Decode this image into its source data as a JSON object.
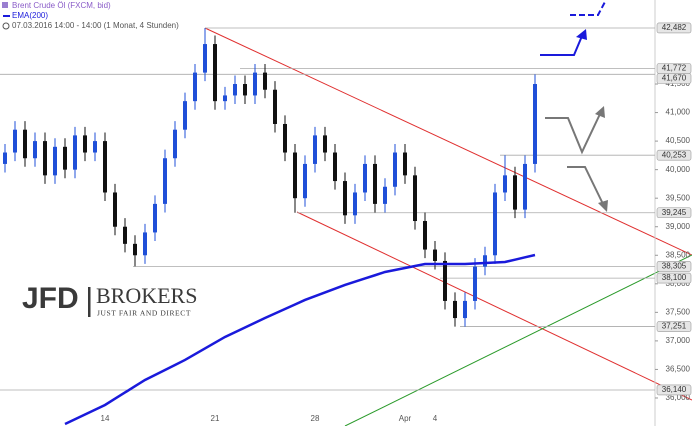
{
  "chart_data": {
    "type": "candlestick",
    "title": "Brent Crude Öl (FXCM, bid)",
    "subtitle": "07.03.2016 14:00 - 14:00 (1 Monat, 4 Stunden)",
    "categories": [
      null,
      null,
      null,
      null,
      null,
      null,
      null,
      null,
      null,
      null,
      "14",
      null,
      null,
      null,
      null,
      null,
      null,
      null,
      null,
      null,
      null,
      "21",
      null,
      null,
      null,
      null,
      null,
      null,
      null,
      null,
      null,
      "28",
      null,
      null,
      null,
      null,
      null,
      null,
      null,
      null,
      "Apr",
      null,
      null,
      "4",
      null,
      null,
      null,
      null,
      null,
      null,
      null,
      null,
      null,
      null
    ],
    "open": [
      40100,
      40300,
      40700,
      40200,
      40500,
      39900,
      40400,
      40000,
      40600,
      40300,
      40500,
      39600,
      39000,
      38700,
      38500,
      38900,
      39400,
      40200,
      40700,
      41200,
      41700,
      42200,
      41200,
      41300,
      41500,
      41300,
      41700,
      41400,
      40800,
      40300,
      39500,
      40100,
      40600,
      40300,
      39800,
      39200,
      39600,
      40100,
      39400,
      39700,
      40300,
      39900,
      39100,
      38600,
      38400,
      37700,
      37400,
      37700,
      38300,
      38500,
      39600,
      39900,
      39300,
      40100
    ],
    "high": [
      40450,
      40850,
      40850,
      40650,
      40650,
      40550,
      40550,
      40750,
      40750,
      40650,
      40650,
      39750,
      39150,
      38850,
      39050,
      39550,
      40350,
      40850,
      41350,
      41850,
      42482,
      42350,
      41450,
      41650,
      41650,
      41850,
      41850,
      41550,
      40950,
      40450,
      40250,
      40750,
      40750,
      40450,
      39950,
      39750,
      40250,
      40250,
      39850,
      40450,
      40450,
      40050,
      39250,
      38750,
      38550,
      37850,
      37850,
      38450,
      38650,
      39750,
      40253,
      40050,
      40250,
      41670
    ],
    "low": [
      39950,
      40150,
      40050,
      40050,
      39750,
      39750,
      39850,
      39850,
      40150,
      40150,
      39450,
      38850,
      38550,
      38305,
      38350,
      38750,
      39250,
      40050,
      40550,
      41050,
      41550,
      41050,
      41050,
      41150,
      41150,
      41150,
      41250,
      40650,
      40150,
      39245,
      39350,
      39950,
      40150,
      39650,
      39050,
      39050,
      39450,
      39250,
      39250,
      39550,
      39750,
      38950,
      38450,
      38250,
      37550,
      37251,
      37250,
      37550,
      38150,
      38350,
      39450,
      39150,
      39150,
      39950
    ],
    "close": [
      40300,
      40700,
      40200,
      40500,
      39900,
      40400,
      40000,
      40600,
      40300,
      40500,
      39600,
      39000,
      38700,
      38500,
      38900,
      39400,
      40200,
      40700,
      41200,
      41700,
      42200,
      41200,
      41300,
      41500,
      41300,
      41700,
      41400,
      40800,
      40300,
      39500,
      40100,
      40600,
      40300,
      39800,
      39200,
      39600,
      40100,
      39400,
      39700,
      40300,
      39900,
      39100,
      38600,
      38400,
      37700,
      37400,
      37700,
      38300,
      38500,
      39600,
      39900,
      39300,
      40100,
      41500
    ],
    "up_color": "#1f4fd8",
    "down_color": "#111111",
    "series": [
      {
        "name": "EMA(200)",
        "color": "#1a1adb",
        "values": [
          null,
          null,
          null,
          null,
          null,
          null,
          35544,
          35627,
          35710,
          35793,
          35877,
          35987,
          36096,
          36206,
          36315,
          36403,
          36491,
          36578,
          36666,
          36767,
          36868,
          36968,
          37069,
          37152,
          37235,
          37318,
          37401,
          37480,
          37559,
          37638,
          37717,
          37783,
          37849,
          37914,
          37980,
          38037,
          38094,
          38150,
          38207,
          38242,
          38277,
          38312,
          38347,
          38347,
          38347,
          38347,
          38347,
          38356,
          38365,
          38373,
          38382,
          38423,
          38464,
          38505
        ]
      }
    ],
    "ylim": [
      35509,
      42972
    ],
    "yticks": [
      {
        "value": 41500,
        "label": "41,500"
      },
      {
        "value": 41000,
        "label": "41,000"
      },
      {
        "value": 40500,
        "label": "40,500"
      },
      {
        "value": 40000,
        "label": "40,000"
      },
      {
        "value": 39500,
        "label": "39,500"
      },
      {
        "value": 39000,
        "label": "39,000"
      },
      {
        "value": 38500,
        "label": "38,500"
      },
      {
        "value": 38000,
        "label": "38,000"
      },
      {
        "value": 37500,
        "label": "37,500"
      },
      {
        "value": 37000,
        "label": "37,000"
      },
      {
        "value": 36500,
        "label": "36,500"
      },
      {
        "value": 36000,
        "label": "36,000"
      }
    ],
    "levels": [
      {
        "value": 42482,
        "label": "42,482"
      },
      {
        "value": 41772,
        "label": "41,772"
      },
      {
        "value": 41670,
        "label": "41,670"
      },
      {
        "value": 40253,
        "label": "40,253"
      },
      {
        "value": 39245,
        "label": "39,245"
      },
      {
        "value": 38305,
        "label": "38,305"
      },
      {
        "value": 38100,
        "label": "38,100"
      },
      {
        "value": 37251,
        "label": "37,251"
      },
      {
        "value": 36140,
        "label": "36,140"
      }
    ]
  },
  "logo": {
    "brand": "JFD",
    "brand2": "BROKERS",
    "tagline": "JUST FAIR AND DIRECT"
  }
}
